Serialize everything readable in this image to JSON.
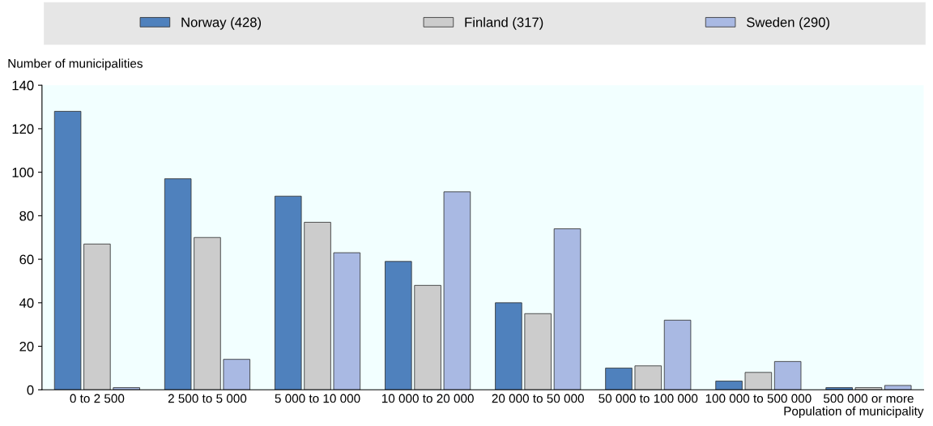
{
  "chart_data": {
    "type": "bar",
    "categories": [
      "0 to 2 500",
      "2 500 to 5 000",
      "5 000 to 10 000",
      "10 000 to 20 000",
      "20 000 to 50 000",
      "50 000 to 100 000",
      "100 000 to 500 000",
      "500 000 or more"
    ],
    "series": [
      {
        "name": "Norway (428)",
        "color": "#4f81bd",
        "values": [
          128,
          97,
          89,
          59,
          40,
          10,
          4,
          1
        ]
      },
      {
        "name": "Finland (317)",
        "color": "#cccccc",
        "values": [
          67,
          70,
          77,
          48,
          35,
          11,
          8,
          1
        ]
      },
      {
        "name": "Sweden (290)",
        "color": "#a9b9e3",
        "values": [
          1,
          14,
          63,
          91,
          74,
          32,
          13,
          2
        ]
      }
    ],
    "ylabel": "Number of municipalities",
    "xlabel": "Population of municipality",
    "ylim": [
      0,
      140
    ],
    "yticks": [
      0,
      20,
      40,
      60,
      80,
      100,
      120,
      140
    ],
    "grid": false,
    "legend": "top"
  }
}
